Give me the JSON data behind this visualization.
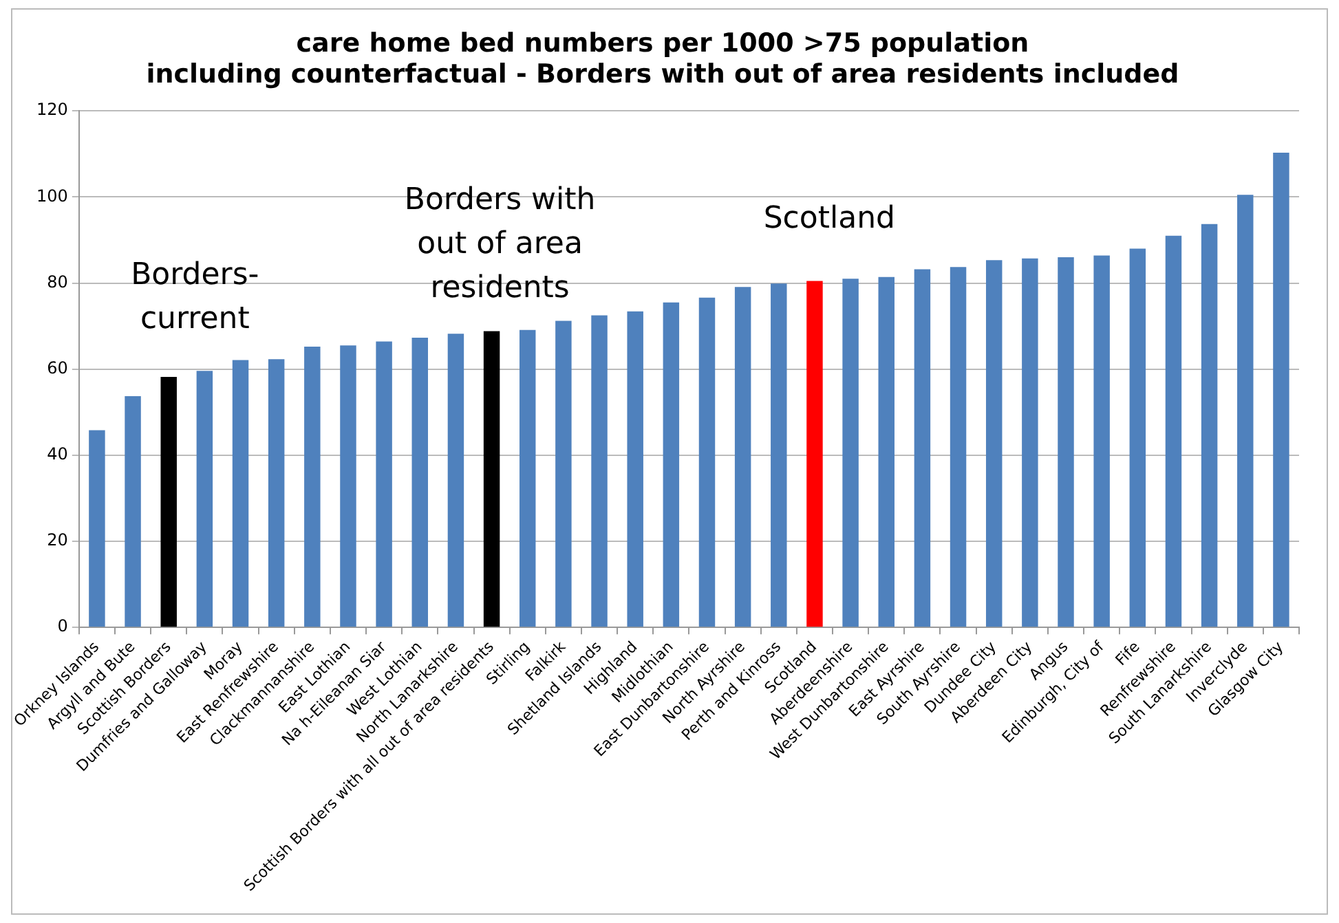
{
  "chart_data": {
    "type": "bar",
    "title": "care home bed numbers per 1000 >75 population\nincluding counterfactual - Borders with out of area residents included",
    "categories": [
      "Orkney Islands",
      "Argyll and Bute",
      "Scottish Borders",
      "Dumfries and Galloway",
      "Moray",
      "East Renfrewshire",
      "Clackmannanshire",
      "East Lothian",
      "Na h-Eileanan Siar",
      "West Lothian",
      "North Lanarkshire",
      "Scottish Borders with all out of area residents",
      "Stirling",
      "Falkirk",
      "Shetland Islands",
      "Highland",
      "Midlothian",
      "East Dunbartonshire",
      "North Ayrshire",
      "Perth and Kinross",
      "Scotland",
      "Aberdeenshire",
      "West Dunbartonshire",
      "East Ayrshire",
      "South Ayrshire",
      "Dundee City",
      "Aberdeen City",
      "Angus",
      "Edinburgh, City of",
      "Fife",
      "Renfrewshire",
      "South Lanarkshire",
      "Inverclyde",
      "Glasgow City"
    ],
    "values": [
      45.8,
      53.7,
      58.2,
      59.6,
      62.1,
      62.3,
      65.2,
      65.5,
      66.4,
      67.3,
      68.2,
      68.8,
      69.1,
      71.2,
      72.5,
      73.4,
      75.5,
      76.6,
      79.1,
      79.9,
      80.5,
      81.0,
      81.4,
      83.2,
      83.7,
      85.3,
      85.7,
      86.0,
      86.4,
      88.0,
      91.0,
      93.7,
      100.5,
      110.3
    ],
    "colors": [
      "#4f81bd",
      "#4f81bd",
      "#000000",
      "#4f81bd",
      "#4f81bd",
      "#4f81bd",
      "#4f81bd",
      "#4f81bd",
      "#4f81bd",
      "#4f81bd",
      "#4f81bd",
      "#000000",
      "#4f81bd",
      "#4f81bd",
      "#4f81bd",
      "#4f81bd",
      "#4f81bd",
      "#4f81bd",
      "#4f81bd",
      "#4f81bd",
      "#ff0000",
      "#4f81bd",
      "#4f81bd",
      "#4f81bd",
      "#4f81bd",
      "#4f81bd",
      "#4f81bd",
      "#4f81bd",
      "#4f81bd",
      "#4f81bd",
      "#4f81bd",
      "#4f81bd",
      "#4f81bd",
      "#4f81bd"
    ],
    "ylim": [
      0,
      120
    ],
    "yticks": [
      0,
      20,
      40,
      60,
      80,
      100,
      120
    ],
    "grid": "y",
    "legend": false,
    "annotations": [
      "Borders-\ncurrent",
      "Borders with\nout of area\nresidents",
      "Scotland"
    ]
  }
}
